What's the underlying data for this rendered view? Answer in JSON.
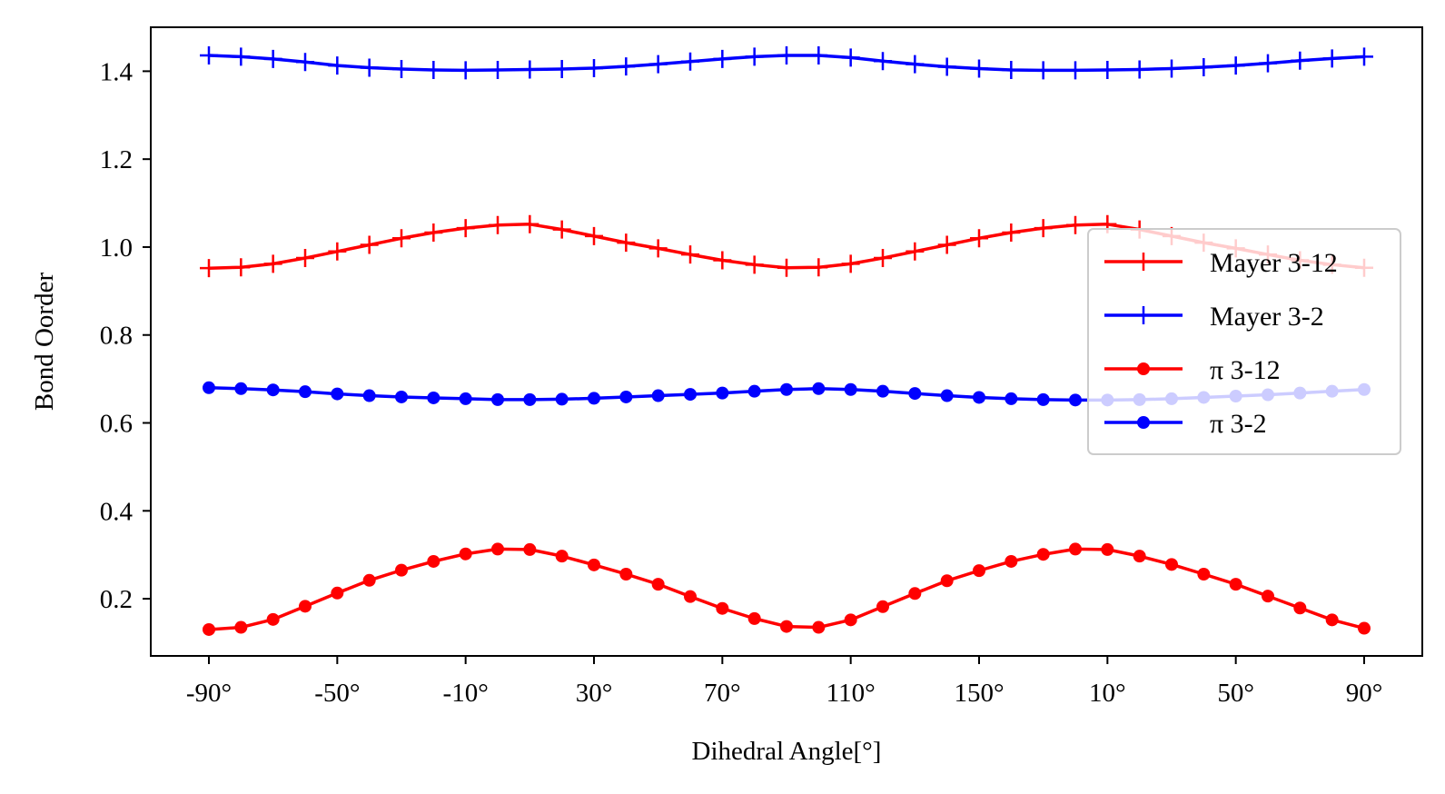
{
  "chart_data": {
    "type": "line",
    "xlabel": "Dihedral Angle[°]",
    "ylabel": "Bond Oorder",
    "x_tick_labels": [
      "-90°",
      "-50°",
      "-10°",
      "30°",
      "70°",
      "110°",
      "150°",
      "10°",
      "50°",
      "90°"
    ],
    "y_tick_labels": [
      "0.2",
      "0.4",
      "0.6",
      "0.8",
      "1.0",
      "1.2",
      "1.4"
    ],
    "y_ticks": [
      0.2,
      0.4,
      0.6,
      0.8,
      1.0,
      1.2,
      1.4
    ],
    "ylim": [
      0.07,
      1.5
    ],
    "grid": false,
    "legend_position": "right",
    "x_index": [
      0,
      1,
      2,
      3,
      4,
      5,
      6,
      7,
      8,
      9,
      10,
      11,
      12,
      13,
      14,
      15,
      16,
      17,
      18,
      19,
      20,
      21,
      22,
      23,
      24,
      25,
      26,
      27,
      28,
      29,
      30,
      31,
      32,
      33,
      34,
      35,
      36
    ],
    "series": [
      {
        "name": "Mayer 3-12",
        "color": "#ff0000",
        "marker": "plus",
        "values": [
          0.952,
          0.954,
          0.962,
          0.975,
          0.99,
          1.005,
          1.02,
          1.033,
          1.043,
          1.05,
          1.052,
          1.04,
          1.025,
          1.01,
          0.997,
          0.983,
          0.97,
          0.96,
          0.953,
          0.954,
          0.962,
          0.975,
          0.99,
          1.005,
          1.02,
          1.033,
          1.043,
          1.05,
          1.052,
          1.04,
          1.025,
          1.01,
          0.997,
          0.983,
          0.97,
          0.96,
          0.953
        ]
      },
      {
        "name": "Mayer 3-2",
        "color": "#0000ff",
        "marker": "plus",
        "values": [
          1.436,
          1.433,
          1.428,
          1.421,
          1.413,
          1.408,
          1.405,
          1.403,
          1.402,
          1.403,
          1.404,
          1.405,
          1.407,
          1.411,
          1.416,
          1.422,
          1.428,
          1.433,
          1.436,
          1.436,
          1.431,
          1.423,
          1.416,
          1.41,
          1.406,
          1.403,
          1.402,
          1.402,
          1.403,
          1.404,
          1.406,
          1.409,
          1.413,
          1.418,
          1.424,
          1.429,
          1.433
        ]
      },
      {
        "name": "π 3-12",
        "color": "#ff0000",
        "marker": "dot",
        "values": [
          0.13,
          0.135,
          0.153,
          0.183,
          0.213,
          0.242,
          0.265,
          0.285,
          0.302,
          0.313,
          0.312,
          0.297,
          0.277,
          0.256,
          0.233,
          0.205,
          0.178,
          0.155,
          0.137,
          0.135,
          0.152,
          0.182,
          0.212,
          0.241,
          0.264,
          0.285,
          0.301,
          0.313,
          0.312,
          0.297,
          0.278,
          0.256,
          0.233,
          0.206,
          0.179,
          0.152,
          0.133
        ]
      },
      {
        "name": "π 3-2",
        "color": "#0000ff",
        "marker": "dot",
        "values": [
          0.68,
          0.678,
          0.675,
          0.671,
          0.666,
          0.662,
          0.659,
          0.657,
          0.655,
          0.653,
          0.653,
          0.654,
          0.656,
          0.659,
          0.662,
          0.665,
          0.668,
          0.672,
          0.676,
          0.678,
          0.676,
          0.672,
          0.667,
          0.662,
          0.658,
          0.655,
          0.653,
          0.652,
          0.652,
          0.653,
          0.655,
          0.658,
          0.661,
          0.664,
          0.668,
          0.672,
          0.676
        ]
      }
    ]
  }
}
